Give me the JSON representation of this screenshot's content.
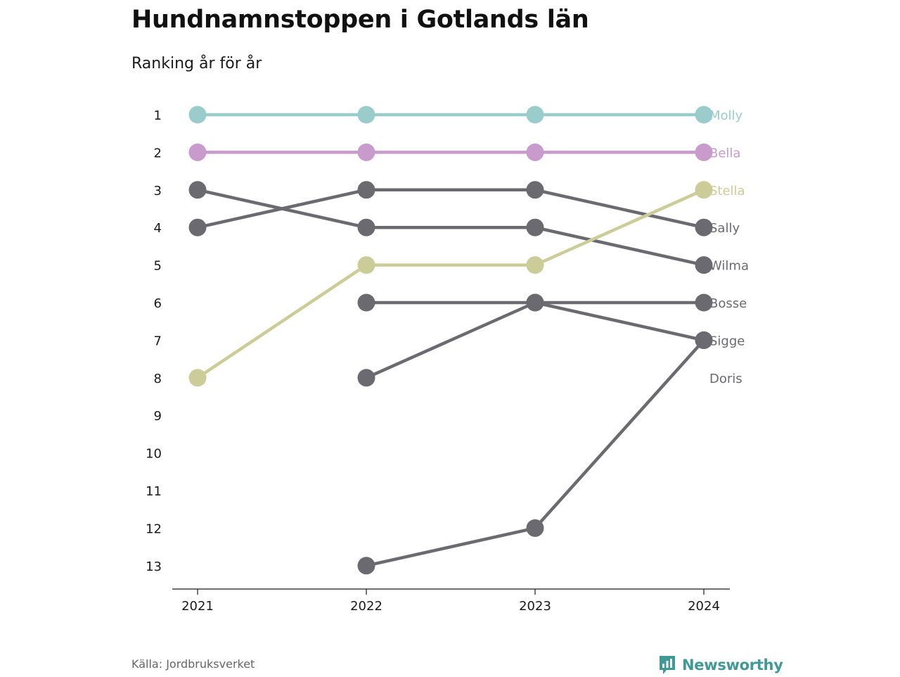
{
  "title": "Hundnamnstoppen i Gotlands län",
  "subtitle": "Ranking år för år",
  "source": "Källa: Jordbruksverket",
  "brand": {
    "name": "Newsworthy",
    "icon": "newsworthy-logo-icon",
    "color": "#3f9a96"
  },
  "chart_data": {
    "type": "line",
    "chart_kind": "bump",
    "x": [
      "2021",
      "2022",
      "2023",
      "2024"
    ],
    "y_ticks": [
      1,
      2,
      3,
      4,
      5,
      6,
      7,
      8,
      9,
      10,
      11,
      12,
      13
    ],
    "y_reversed": true,
    "ylim": [
      1,
      13
    ],
    "grid": false,
    "legend": "direct labels at right",
    "series": [
      {
        "name": "Molly",
        "values": [
          1,
          1,
          1,
          1
        ],
        "color": "#99cccb"
      },
      {
        "name": "Bella",
        "values": [
          2,
          2,
          2,
          2
        ],
        "color": "#c89bcc"
      },
      {
        "name": "Stella",
        "values": [
          8,
          5,
          5,
          3
        ],
        "color": "#cccc99"
      },
      {
        "name": "Sally",
        "values": [
          4,
          3,
          3,
          4
        ],
        "color": "#6b6a70"
      },
      {
        "name": "Wilma",
        "values": [
          3,
          4,
          4,
          5
        ],
        "color": "#6b6a70"
      },
      {
        "name": "Bosse",
        "values": [
          null,
          6,
          6,
          6
        ],
        "color": "#6b6a70"
      },
      {
        "name": "Sigge",
        "values": [
          null,
          8,
          6,
          7
        ],
        "color": "#6b6a70"
      },
      {
        "name": "Doris",
        "values": [
          null,
          13,
          12,
          7
        ],
        "color": "#6b6a70"
      }
    ],
    "end_labels": [
      {
        "name": "Molly",
        "rank": 1,
        "color": "#99cccb"
      },
      {
        "name": "Bella",
        "rank": 2,
        "color": "#c89bcc"
      },
      {
        "name": "Stella",
        "rank": 3,
        "color": "#cccc99"
      },
      {
        "name": "Sally",
        "rank": 4,
        "color": "#6b6a70"
      },
      {
        "name": "Wilma",
        "rank": 5,
        "color": "#6b6a70"
      },
      {
        "name": "Bosse",
        "rank": 6,
        "color": "#6b6a70"
      },
      {
        "name": "Sigge",
        "rank": 7,
        "color": "#6b6a70"
      },
      {
        "name": "Doris",
        "rank": 8,
        "color": "#6b6a70"
      }
    ]
  }
}
